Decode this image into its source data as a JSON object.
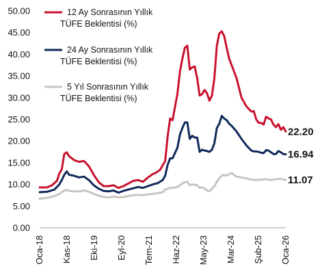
{
  "chart_data": {
    "type": "line",
    "ylim": [
      0,
      50
    ],
    "y_ticks": [
      "0.00",
      "5.00",
      "10.00",
      "15.00",
      "20.00",
      "25.00",
      "30.00",
      "35.00",
      "40.00",
      "45.00",
      "50.00"
    ],
    "x_ticks": [
      "Oca-18",
      "Kas-18",
      "Eki-19",
      "Eyl-20",
      "Tem-21",
      "Haz-22",
      "May-23",
      "Mar-24",
      "Şub-25",
      "Oca-26"
    ],
    "x_range": [
      "Oca-18",
      "Oca-26"
    ],
    "grid": false,
    "legend_position": "top-left",
    "end_labels": [
      "22.20",
      "16.94",
      "11.07"
    ],
    "series": [
      {
        "name": "12 Ay Sonrasının Yıllık TÜFE Beklentisi (%)",
        "color": "#c8102e",
        "points": [
          [
            0,
            9.3
          ],
          [
            3,
            9.3
          ],
          [
            5,
            9.8
          ],
          [
            7,
            10.8
          ],
          [
            8,
            12.5
          ],
          [
            9,
            13.5
          ],
          [
            10,
            17.0
          ],
          [
            11,
            17.4
          ],
          [
            12,
            16.5
          ],
          [
            14,
            15.6
          ],
          [
            16,
            15.2
          ],
          [
            18,
            15.4
          ],
          [
            20,
            14.2
          ],
          [
            22,
            12.2
          ],
          [
            24,
            10.5
          ],
          [
            26,
            9.6
          ],
          [
            28,
            9.6
          ],
          [
            30,
            9.8
          ],
          [
            32,
            9.2
          ],
          [
            34,
            9.6
          ],
          [
            36,
            10.2
          ],
          [
            38,
            10.8
          ],
          [
            40,
            11.0
          ],
          [
            42,
            10.6
          ],
          [
            44,
            11.6
          ],
          [
            46,
            12.4
          ],
          [
            47,
            12.6
          ],
          [
            49,
            13.4
          ],
          [
            51,
            15.4
          ],
          [
            52,
            21.0
          ],
          [
            53,
            25.2
          ],
          [
            54,
            24.8
          ],
          [
            56,
            31.0
          ],
          [
            57,
            36.0
          ],
          [
            58,
            39.0
          ],
          [
            59,
            41.5
          ],
          [
            60,
            42.0
          ],
          [
            61,
            36.5
          ],
          [
            62,
            37.0
          ],
          [
            63,
            37.2
          ],
          [
            64,
            34.5
          ],
          [
            65,
            30.5
          ],
          [
            66,
            30.8
          ],
          [
            67,
            31.8
          ],
          [
            68,
            31.0
          ],
          [
            69,
            29.3
          ],
          [
            70,
            30.5
          ],
          [
            71,
            34.5
          ],
          [
            72,
            42.0
          ],
          [
            73,
            44.8
          ],
          [
            74,
            45.3
          ],
          [
            75,
            44.2
          ],
          [
            76,
            41.5
          ],
          [
            77,
            39.0
          ],
          [
            78,
            37.5
          ],
          [
            80,
            34.5
          ],
          [
            82,
            30.0
          ],
          [
            84,
            28.0
          ],
          [
            86,
            26.8
          ],
          [
            87,
            26.9
          ],
          [
            88,
            25.0
          ],
          [
            89,
            24.2
          ],
          [
            90,
            24.2
          ],
          [
            91,
            23.8
          ],
          [
            92,
            25.6
          ],
          [
            93,
            25.2
          ],
          [
            94,
            25.0
          ],
          [
            95,
            23.8
          ],
          [
            96,
            23.2
          ],
          [
            97,
            23.9
          ],
          [
            98,
            22.6
          ],
          [
            99,
            23.2
          ],
          [
            100,
            22.2
          ]
        ]
      },
      {
        "name": "24 Ay Sonrasının Yıllık TÜFE Beklentisi (%)",
        "color": "#10285a",
        "points": [
          [
            0,
            8.2
          ],
          [
            3,
            8.3
          ],
          [
            6,
            8.8
          ],
          [
            8,
            10.0
          ],
          [
            9,
            11.0
          ],
          [
            10,
            12.2
          ],
          [
            11,
            13.0
          ],
          [
            12,
            12.2
          ],
          [
            14,
            12.0
          ],
          [
            16,
            11.6
          ],
          [
            18,
            11.8
          ],
          [
            20,
            11.0
          ],
          [
            22,
            9.8
          ],
          [
            24,
            9.0
          ],
          [
            26,
            8.5
          ],
          [
            28,
            8.4
          ],
          [
            30,
            8.6
          ],
          [
            32,
            8.1
          ],
          [
            34,
            8.5
          ],
          [
            36,
            8.8
          ],
          [
            38,
            9.1
          ],
          [
            40,
            9.4
          ],
          [
            42,
            9.2
          ],
          [
            44,
            9.6
          ],
          [
            46,
            10.0
          ],
          [
            48,
            10.3
          ],
          [
            50,
            11.0
          ],
          [
            51,
            12.0
          ],
          [
            52,
            14.5
          ],
          [
            53,
            16.0
          ],
          [
            54,
            16.0
          ],
          [
            56,
            18.5
          ],
          [
            57,
            21.5
          ],
          [
            58,
            23.0
          ],
          [
            59,
            24.3
          ],
          [
            60,
            24.3
          ],
          [
            61,
            20.5
          ],
          [
            62,
            21.2
          ],
          [
            63,
            20.8
          ],
          [
            64,
            20.8
          ],
          [
            65,
            17.5
          ],
          [
            66,
            18.0
          ],
          [
            67,
            17.8
          ],
          [
            68,
            17.7
          ],
          [
            69,
            17.5
          ],
          [
            70,
            18.0
          ],
          [
            71,
            19.5
          ],
          [
            72,
            23.0
          ],
          [
            73,
            24.0
          ],
          [
            74,
            25.8
          ],
          [
            75,
            25.2
          ],
          [
            76,
            24.8
          ],
          [
            77,
            24.0
          ],
          [
            78,
            23.5
          ],
          [
            80,
            22.2
          ],
          [
            82,
            20.5
          ],
          [
            84,
            19.0
          ],
          [
            86,
            17.8
          ],
          [
            87,
            17.6
          ],
          [
            88,
            17.6
          ],
          [
            89,
            17.5
          ],
          [
            90,
            17.3
          ],
          [
            91,
            17.2
          ],
          [
            92,
            17.9
          ],
          [
            93,
            17.8
          ],
          [
            94,
            17.4
          ],
          [
            95,
            17.0
          ],
          [
            96,
            17.0
          ],
          [
            97,
            17.7
          ],
          [
            98,
            17.4
          ],
          [
            99,
            17.0
          ],
          [
            100,
            16.94
          ]
        ]
      },
      {
        "name": "5 Yıl Sonrasının Yıllık TÜFE Beklentisi (%)",
        "color": "#c8c5c0",
        "points": [
          [
            0,
            6.7
          ],
          [
            3,
            6.9
          ],
          [
            6,
            7.3
          ],
          [
            8,
            7.8
          ],
          [
            9,
            8.2
          ],
          [
            10,
            8.6
          ],
          [
            11,
            8.7
          ],
          [
            12,
            8.5
          ],
          [
            14,
            8.4
          ],
          [
            16,
            8.4
          ],
          [
            18,
            8.6
          ],
          [
            20,
            8.3
          ],
          [
            22,
            7.8
          ],
          [
            24,
            7.4
          ],
          [
            26,
            7.1
          ],
          [
            28,
            7.0
          ],
          [
            30,
            7.2
          ],
          [
            32,
            7.0
          ],
          [
            34,
            7.1
          ],
          [
            36,
            7.3
          ],
          [
            38,
            7.5
          ],
          [
            40,
            7.6
          ],
          [
            42,
            7.5
          ],
          [
            44,
            7.7
          ],
          [
            46,
            7.8
          ],
          [
            48,
            8.0
          ],
          [
            50,
            8.2
          ],
          [
            51,
            8.8
          ],
          [
            52,
            9.0
          ],
          [
            53,
            9.2
          ],
          [
            54,
            9.2
          ],
          [
            56,
            9.4
          ],
          [
            57,
            9.8
          ],
          [
            58,
            10.2
          ],
          [
            59,
            10.5
          ],
          [
            60,
            10.6
          ],
          [
            61,
            9.8
          ],
          [
            62,
            10.0
          ],
          [
            63,
            9.9
          ],
          [
            64,
            9.8
          ],
          [
            65,
            9.2
          ],
          [
            66,
            9.3
          ],
          [
            67,
            9.1
          ],
          [
            68,
            8.6
          ],
          [
            69,
            8.4
          ],
          [
            70,
            9.0
          ],
          [
            71,
            9.6
          ],
          [
            72,
            10.6
          ],
          [
            73,
            11.4
          ],
          [
            74,
            12.0
          ],
          [
            75,
            12.2
          ],
          [
            76,
            12.0
          ],
          [
            77,
            12.4
          ],
          [
            78,
            12.6
          ],
          [
            79,
            12.2
          ],
          [
            80,
            11.8
          ],
          [
            82,
            11.6
          ],
          [
            84,
            11.4
          ],
          [
            86,
            11.1
          ],
          [
            88,
            11.0
          ],
          [
            90,
            11.1
          ],
          [
            92,
            11.2
          ],
          [
            94,
            11.0
          ],
          [
            96,
            11.2
          ],
          [
            98,
            11.3
          ],
          [
            99,
            11.1
          ],
          [
            100,
            11.07
          ]
        ]
      }
    ]
  }
}
